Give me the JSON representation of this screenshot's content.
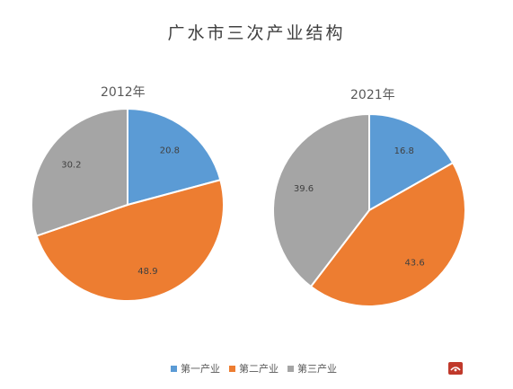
{
  "title": "广水市三次产业结构",
  "chart_data": [
    {
      "type": "pie",
      "title": "2012年",
      "categories": [
        "第一产业",
        "第二产业",
        "第三产业"
      ],
      "values": [
        20.8,
        48.9,
        30.2
      ]
    },
    {
      "type": "pie",
      "title": "2021年",
      "categories": [
        "第一产业",
        "第二产业",
        "第三产业"
      ],
      "values": [
        16.8,
        43.6,
        39.6
      ]
    }
  ],
  "legend": [
    {
      "label": "第一产业",
      "color": "#5b9bd5"
    },
    {
      "label": "第二产业",
      "color": "#ed7d31"
    },
    {
      "label": "第三产业",
      "color": "#a5a5a5"
    }
  ],
  "colors": [
    "#5b9bd5",
    "#ed7d31",
    "#a5a5a5"
  ]
}
